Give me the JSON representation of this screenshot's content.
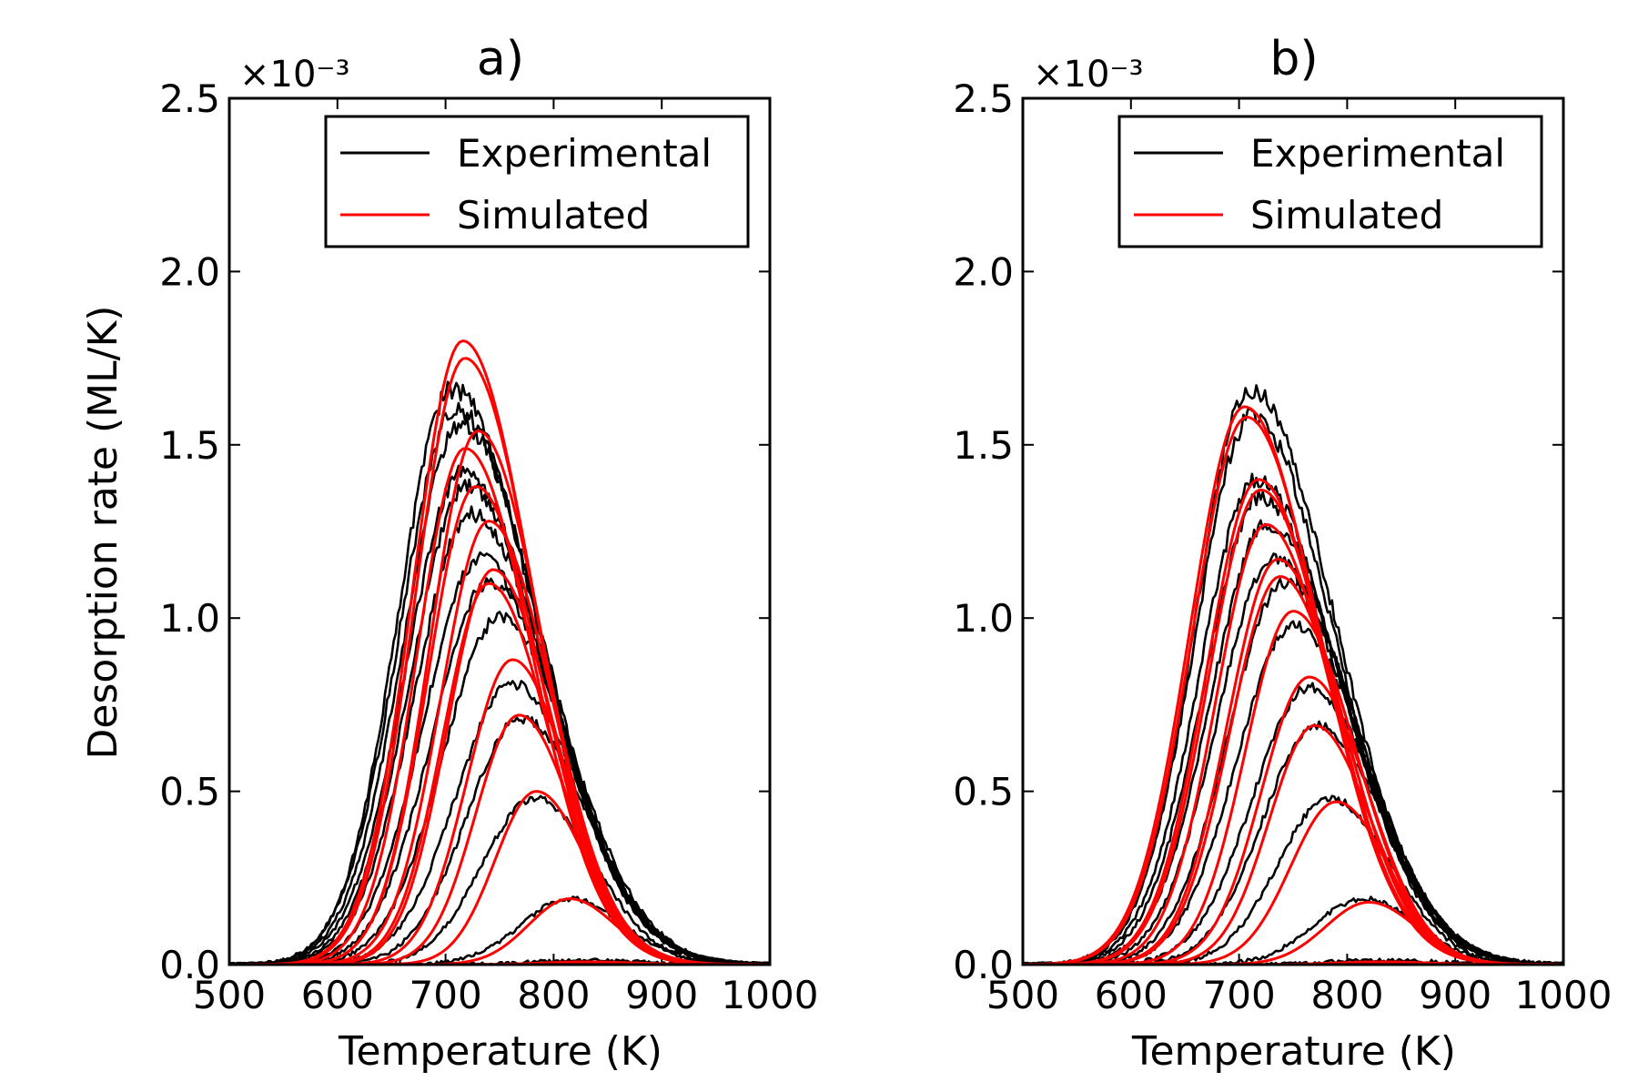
{
  "chart_data": [
    {
      "type": "line",
      "title": "a)",
      "xlabel": "Temperature (K)",
      "ylabel": "Desorption rate (ML/K)",
      "y_multiplier": "×10⁻³",
      "xlim": [
        500,
        1000
      ],
      "ylim": [
        0,
        2.5
      ],
      "xticks": [
        "500",
        "600",
        "700",
        "800",
        "900",
        "1000"
      ],
      "yticks": [
        "0.0",
        "0.5",
        "1.0",
        "1.5",
        "2.0",
        "2.5"
      ],
      "grid": false,
      "legend": {
        "position": "top-right",
        "entries": [
          {
            "label": "Experimental",
            "color": "#000000"
          },
          {
            "label": "Simulated",
            "color": "#ff0000"
          }
        ]
      },
      "series": [
        {
          "group": "experimental",
          "color": "#000000",
          "peak_x": 706,
          "peak_y": 1.66,
          "wl": 50,
          "wr": 78
        },
        {
          "group": "experimental",
          "color": "#000000",
          "peak_x": 710,
          "peak_y": 1.6,
          "wl": 52,
          "wr": 76
        },
        {
          "group": "experimental",
          "color": "#000000",
          "peak_x": 714,
          "peak_y": 1.56,
          "wl": 52,
          "wr": 76
        },
        {
          "group": "experimental",
          "color": "#000000",
          "peak_x": 716,
          "peak_y": 1.42,
          "wl": 52,
          "wr": 76
        },
        {
          "group": "experimental",
          "color": "#000000",
          "peak_x": 720,
          "peak_y": 1.38,
          "wl": 52,
          "wr": 74
        },
        {
          "group": "experimental",
          "color": "#000000",
          "peak_x": 724,
          "peak_y": 1.3,
          "wl": 52,
          "wr": 74
        },
        {
          "group": "experimental",
          "color": "#000000",
          "peak_x": 732,
          "peak_y": 1.17,
          "wl": 52,
          "wr": 72
        },
        {
          "group": "experimental",
          "color": "#000000",
          "peak_x": 740,
          "peak_y": 1.1,
          "wl": 52,
          "wr": 70
        },
        {
          "group": "experimental",
          "color": "#000000",
          "peak_x": 750,
          "peak_y": 1.0,
          "wl": 52,
          "wr": 68
        },
        {
          "group": "experimental",
          "color": "#000000",
          "peak_x": 762,
          "peak_y": 0.81,
          "wl": 52,
          "wr": 64
        },
        {
          "group": "experimental",
          "color": "#000000",
          "peak_x": 770,
          "peak_y": 0.71,
          "wl": 50,
          "wr": 62
        },
        {
          "group": "experimental",
          "color": "#000000",
          "peak_x": 782,
          "peak_y": 0.48,
          "wl": 48,
          "wr": 56
        },
        {
          "group": "experimental",
          "color": "#000000",
          "peak_x": 815,
          "peak_y": 0.19,
          "wl": 45,
          "wr": 50
        },
        {
          "group": "experimental",
          "color": "#000000",
          "peak_x": 830,
          "peak_y": 0.012,
          "wl": 50,
          "wr": 55
        },
        {
          "group": "simulated",
          "color": "#ff0000",
          "peak_x": 716,
          "peak_y": 1.8,
          "wl": 46,
          "wr": 64
        },
        {
          "group": "simulated",
          "color": "#ff0000",
          "peak_x": 718,
          "peak_y": 1.75,
          "wl": 46,
          "wr": 64
        },
        {
          "group": "simulated",
          "color": "#ff0000",
          "peak_x": 730,
          "peak_y": 1.54,
          "wl": 44,
          "wr": 60
        },
        {
          "group": "simulated",
          "color": "#ff0000",
          "peak_x": 718,
          "peak_y": 1.49,
          "wl": 44,
          "wr": 62
        },
        {
          "group": "simulated",
          "color": "#ff0000",
          "peak_x": 728,
          "peak_y": 1.38,
          "wl": 44,
          "wr": 60
        },
        {
          "group": "simulated",
          "color": "#ff0000",
          "peak_x": 740,
          "peak_y": 1.28,
          "wl": 44,
          "wr": 58
        },
        {
          "group": "simulated",
          "color": "#ff0000",
          "peak_x": 744,
          "peak_y": 1.14,
          "wl": 42,
          "wr": 56
        },
        {
          "group": "simulated",
          "color": "#ff0000",
          "peak_x": 740,
          "peak_y": 1.1,
          "wl": 42,
          "wr": 56
        },
        {
          "group": "simulated",
          "color": "#ff0000",
          "peak_x": 762,
          "peak_y": 0.88,
          "wl": 42,
          "wr": 52
        },
        {
          "group": "simulated",
          "color": "#ff0000",
          "peak_x": 768,
          "peak_y": 0.72,
          "wl": 40,
          "wr": 50
        },
        {
          "group": "simulated",
          "color": "#ff0000",
          "peak_x": 784,
          "peak_y": 0.5,
          "wl": 38,
          "wr": 46
        },
        {
          "group": "simulated",
          "color": "#ff0000",
          "peak_x": 815,
          "peak_y": 0.19,
          "wl": 38,
          "wr": 42
        },
        {
          "group": "simulated",
          "color": "#ff0000",
          "peak_x": 830,
          "peak_y": 0.008,
          "wl": 40,
          "wr": 45
        }
      ]
    },
    {
      "type": "line",
      "title": "b)",
      "xlabel": "Temperature (K)",
      "ylabel": "",
      "y_multiplier": "×10⁻³",
      "xlim": [
        500,
        1000
      ],
      "ylim": [
        0,
        2.5
      ],
      "xticks": [
        "500",
        "600",
        "700",
        "800",
        "900",
        "1000"
      ],
      "yticks": [
        "0.0",
        "0.5",
        "1.0",
        "1.5",
        "2.0",
        "2.5"
      ],
      "grid": false,
      "legend": {
        "position": "top-right",
        "entries": [
          {
            "label": "Experimental",
            "color": "#000000"
          },
          {
            "label": "Simulated",
            "color": "#ff0000"
          }
        ]
      },
      "series": [
        {
          "group": "experimental",
          "color": "#000000",
          "peak_x": 710,
          "peak_y": 1.66,
          "wl": 50,
          "wr": 78
        },
        {
          "group": "experimental",
          "color": "#000000",
          "peak_x": 712,
          "peak_y": 1.58,
          "wl": 52,
          "wr": 76
        },
        {
          "group": "experimental",
          "color": "#000000",
          "peak_x": 716,
          "peak_y": 1.4,
          "wl": 52,
          "wr": 76
        },
        {
          "group": "experimental",
          "color": "#000000",
          "peak_x": 720,
          "peak_y": 1.35,
          "wl": 52,
          "wr": 74
        },
        {
          "group": "experimental",
          "color": "#000000",
          "peak_x": 726,
          "peak_y": 1.27,
          "wl": 52,
          "wr": 74
        },
        {
          "group": "experimental",
          "color": "#000000",
          "peak_x": 732,
          "peak_y": 1.17,
          "wl": 52,
          "wr": 72
        },
        {
          "group": "experimental",
          "color": "#000000",
          "peak_x": 742,
          "peak_y": 1.1,
          "wl": 52,
          "wr": 70
        },
        {
          "group": "experimental",
          "color": "#000000",
          "peak_x": 750,
          "peak_y": 0.98,
          "wl": 52,
          "wr": 68
        },
        {
          "group": "experimental",
          "color": "#000000",
          "peak_x": 765,
          "peak_y": 0.8,
          "wl": 52,
          "wr": 64
        },
        {
          "group": "experimental",
          "color": "#000000",
          "peak_x": 772,
          "peak_y": 0.69,
          "wl": 50,
          "wr": 62
        },
        {
          "group": "experimental",
          "color": "#000000",
          "peak_x": 784,
          "peak_y": 0.48,
          "wl": 48,
          "wr": 56
        },
        {
          "group": "experimental",
          "color": "#000000",
          "peak_x": 815,
          "peak_y": 0.19,
          "wl": 45,
          "wr": 50
        },
        {
          "group": "experimental",
          "color": "#000000",
          "peak_x": 830,
          "peak_y": 0.012,
          "wl": 50,
          "wr": 55
        },
        {
          "group": "simulated",
          "color": "#ff0000",
          "peak_x": 705,
          "peak_y": 1.61,
          "wl": 50,
          "wr": 68
        },
        {
          "group": "simulated",
          "color": "#ff0000",
          "peak_x": 707,
          "peak_y": 1.58,
          "wl": 50,
          "wr": 68
        },
        {
          "group": "simulated",
          "color": "#ff0000",
          "peak_x": 718,
          "peak_y": 1.4,
          "wl": 48,
          "wr": 64
        },
        {
          "group": "simulated",
          "color": "#ff0000",
          "peak_x": 720,
          "peak_y": 1.37,
          "wl": 48,
          "wr": 64
        },
        {
          "group": "simulated",
          "color": "#ff0000",
          "peak_x": 725,
          "peak_y": 1.27,
          "wl": 46,
          "wr": 62
        },
        {
          "group": "simulated",
          "color": "#ff0000",
          "peak_x": 736,
          "peak_y": 1.17,
          "wl": 46,
          "wr": 60
        },
        {
          "group": "simulated",
          "color": "#ff0000",
          "peak_x": 738,
          "peak_y": 1.12,
          "wl": 46,
          "wr": 60
        },
        {
          "group": "simulated",
          "color": "#ff0000",
          "peak_x": 750,
          "peak_y": 1.02,
          "wl": 44,
          "wr": 58
        },
        {
          "group": "simulated",
          "color": "#ff0000",
          "peak_x": 765,
          "peak_y": 0.83,
          "wl": 44,
          "wr": 54
        },
        {
          "group": "simulated",
          "color": "#ff0000",
          "peak_x": 770,
          "peak_y": 0.69,
          "wl": 42,
          "wr": 52
        },
        {
          "group": "simulated",
          "color": "#ff0000",
          "peak_x": 790,
          "peak_y": 0.47,
          "wl": 42,
          "wr": 48
        },
        {
          "group": "simulated",
          "color": "#ff0000",
          "peak_x": 820,
          "peak_y": 0.18,
          "wl": 40,
          "wr": 44
        },
        {
          "group": "simulated",
          "color": "#ff0000",
          "peak_x": 830,
          "peak_y": 0.008,
          "wl": 40,
          "wr": 45
        }
      ]
    }
  ]
}
